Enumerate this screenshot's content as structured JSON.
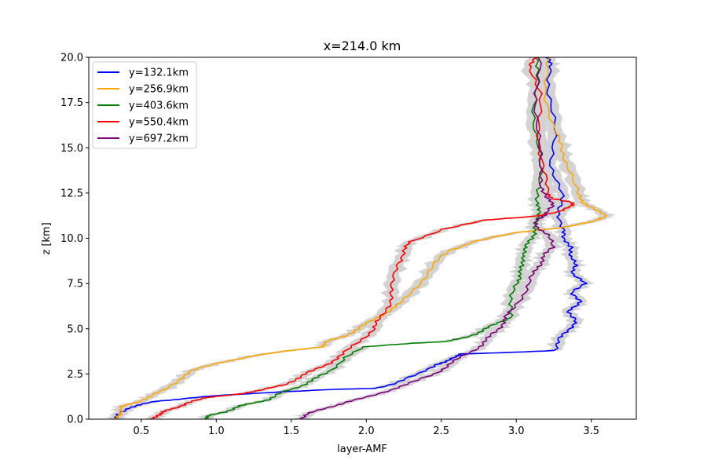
{
  "chart_data": {
    "type": "line",
    "title": "x=214.0 km",
    "xlabel": "layer-AMF",
    "ylabel": "z [km]",
    "xlim": [
      0.15,
      3.8
    ],
    "ylim": [
      0,
      20
    ],
    "xticks": [
      "0.5",
      "1.0",
      "1.5",
      "2.0",
      "2.5",
      "3.0",
      "3.5"
    ],
    "yticks": [
      "0.0",
      "2.5",
      "5.0",
      "7.5",
      "10.0",
      "12.5",
      "15.0",
      "17.5",
      "20.0"
    ],
    "grid": false,
    "legend_position": "top-left",
    "uncertainty_band_color": "#d3d3d3",
    "series": [
      {
        "name": "y=132.1km",
        "color": "#0000ff",
        "x": [
          0.33,
          0.36,
          0.4,
          0.5,
          0.6,
          0.75,
          1.0,
          1.4,
          1.8,
          2.05,
          2.2,
          2.35,
          2.45,
          2.55,
          2.6,
          2.63,
          3.0,
          3.25,
          3.3,
          3.35,
          3.4,
          3.35,
          3.42,
          3.38,
          3.45,
          3.38,
          3.4,
          3.35,
          3.38,
          3.3,
          3.32,
          3.28,
          3.3,
          3.24,
          3.25,
          3.22,
          3.23,
          3.2
        ],
        "y": [
          0.0,
          0.3,
          0.6,
          0.8,
          1.0,
          1.1,
          1.3,
          1.5,
          1.65,
          1.7,
          2.0,
          2.5,
          3.0,
          3.2,
          3.5,
          3.6,
          3.7,
          3.8,
          4.5,
          5.0,
          5.5,
          6.0,
          6.5,
          7.0,
          7.5,
          8.0,
          8.5,
          9.0,
          9.5,
          10.0,
          10.5,
          11.5,
          12.5,
          14.0,
          16.0,
          18.0,
          19.5,
          20.0
        ]
      },
      {
        "name": "y=256.9km",
        "color": "#ffa500",
        "x": [
          0.33,
          0.35,
          0.38,
          0.45,
          0.55,
          0.65,
          0.75,
          0.85,
          1.0,
          1.25,
          1.5,
          1.7,
          1.75,
          1.85,
          1.95,
          2.05,
          2.15,
          2.25,
          2.35,
          2.45,
          2.55,
          2.7,
          3.0,
          3.3,
          3.55,
          3.6,
          3.52,
          3.45,
          3.4,
          3.35,
          3.3,
          3.25,
          3.2,
          3.2
        ],
        "y": [
          0.0,
          0.3,
          0.7,
          0.9,
          1.2,
          1.6,
          2.2,
          2.7,
          3.1,
          3.5,
          3.8,
          4.0,
          4.3,
          4.6,
          5.0,
          5.5,
          6.0,
          6.5,
          7.5,
          8.5,
          9.3,
          9.8,
          10.3,
          10.6,
          11.0,
          11.2,
          11.6,
          12.0,
          12.5,
          14.0,
          15.0,
          16.0,
          18.0,
          20.0
        ]
      },
      {
        "name": "y=403.6km",
        "color": "#008000",
        "x": [
          0.92,
          0.96,
          1.05,
          1.15,
          1.25,
          1.35,
          1.45,
          1.55,
          1.65,
          1.75,
          1.85,
          2.0,
          2.3,
          2.55,
          2.65,
          2.75,
          2.85,
          2.95,
          2.97,
          3.0,
          3.02,
          3.05,
          3.03,
          3.07,
          3.1,
          3.12,
          3.15,
          3.14,
          3.15,
          3.15,
          3.15,
          3.12,
          3.13,
          3.15
        ],
        "y": [
          0.0,
          0.2,
          0.4,
          0.7,
          0.9,
          1.1,
          1.5,
          1.8,
          2.2,
          2.6,
          3.4,
          4.0,
          4.2,
          4.3,
          4.5,
          4.8,
          5.2,
          5.6,
          6.5,
          7.5,
          8.0,
          8.5,
          9.0,
          9.5,
          10.0,
          10.5,
          11.0,
          11.5,
          12.0,
          13.0,
          15.0,
          17.0,
          19.0,
          20.0
        ]
      },
      {
        "name": "y=550.4km",
        "color": "#ff0000",
        "x": [
          0.58,
          0.6,
          0.65,
          0.72,
          0.8,
          0.95,
          1.15,
          1.3,
          1.45,
          1.55,
          1.65,
          1.75,
          1.85,
          1.95,
          2.05,
          2.1,
          2.15,
          2.18,
          2.2,
          2.25,
          2.3,
          2.5,
          2.8,
          3.1,
          3.3,
          3.38,
          3.35,
          3.25,
          3.2,
          3.18,
          3.15,
          3.15,
          3.1,
          3.12
        ],
        "y": [
          0.0,
          0.2,
          0.4,
          0.6,
          0.9,
          1.2,
          1.4,
          1.6,
          1.9,
          2.3,
          2.7,
          3.1,
          3.6,
          4.3,
          5.0,
          5.6,
          6.4,
          7.3,
          8.5,
          9.3,
          9.8,
          10.5,
          11.0,
          11.2,
          11.5,
          11.8,
          12.0,
          12.2,
          12.5,
          14.0,
          16.0,
          18.0,
          19.5,
          20.0
        ]
      },
      {
        "name": "y=697.2km",
        "color": "#800080",
        "x": [
          1.55,
          1.62,
          1.72,
          1.85,
          2.0,
          2.15,
          2.3,
          2.45,
          2.55,
          2.65,
          2.75,
          2.82,
          2.88,
          2.92,
          2.97,
          3.05,
          3.12,
          3.15,
          3.18,
          3.25,
          3.2,
          3.15,
          3.12,
          3.2,
          3.25,
          3.2,
          3.18,
          3.15,
          3.15,
          3.13,
          3.15
        ],
        "y": [
          0.0,
          0.3,
          0.6,
          0.9,
          1.2,
          1.6,
          2.0,
          2.5,
          3.0,
          3.5,
          4.0,
          4.5,
          5.0,
          5.5,
          6.0,
          7.0,
          8.0,
          8.5,
          9.0,
          9.5,
          10.2,
          10.6,
          11.0,
          11.3,
          11.8,
          12.2,
          12.8,
          14.0,
          16.0,
          18.0,
          20.0
        ]
      }
    ]
  }
}
